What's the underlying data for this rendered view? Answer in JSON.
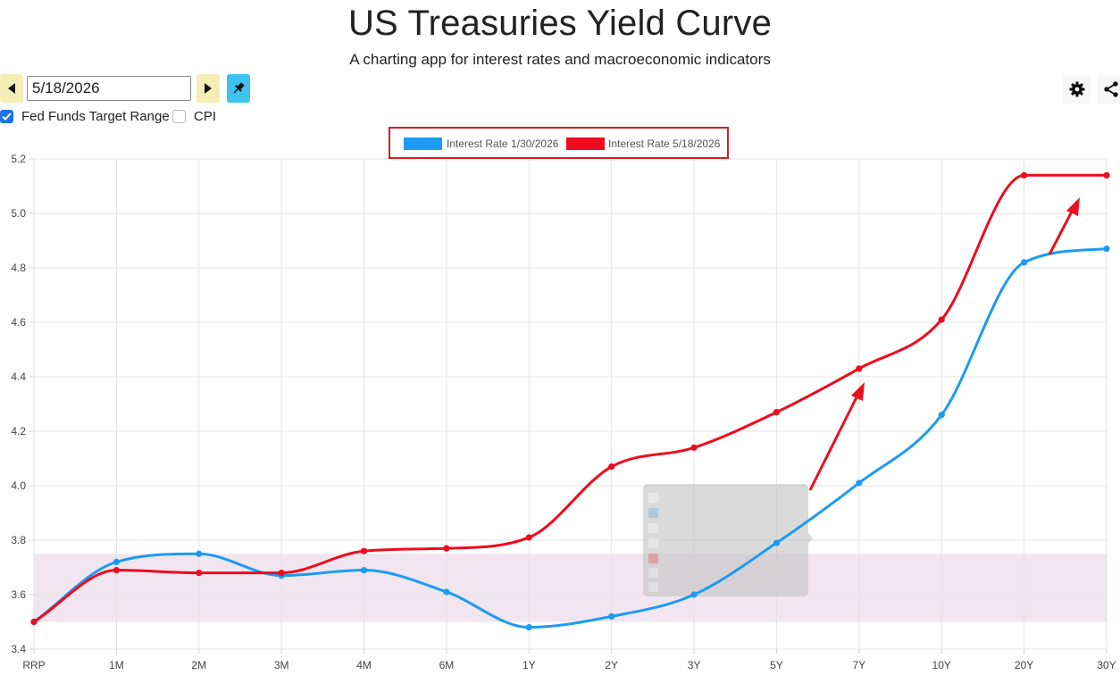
{
  "header": {
    "title": "US Treasuries Yield Curve",
    "subtitle": "A charting app for interest rates and macroeconomic indicators"
  },
  "controls": {
    "date_value": "5/18/2026",
    "prev_icon": "triangle-left-icon",
    "next_icon": "triangle-right-icon",
    "pin_icon": "pushpin-icon",
    "settings_icon": "gear-icon",
    "share_icon": "share-icon",
    "checkboxes": [
      {
        "label": "Fed Funds Target Range",
        "checked": true
      },
      {
        "label": "CPI",
        "checked": false
      }
    ]
  },
  "colors": {
    "series_blue": "#1e9af3",
    "series_red": "#ee0b1e",
    "band_fill": "#f1e6f0",
    "legend_border": "#d42020",
    "accent_yellow": "#f4eeb6",
    "accent_cyan": "#3fc3ee",
    "annotation_arrow": "#e8111e"
  },
  "chart_data": {
    "type": "line",
    "categories": [
      "RRP",
      "1M",
      "2M",
      "3M",
      "4M",
      "6M",
      "1Y",
      "2Y",
      "3Y",
      "5Y",
      "7Y",
      "10Y",
      "20Y",
      "30Y"
    ],
    "ylim": [
      3.4,
      5.2
    ],
    "yticks": [
      "3.4",
      "3.6",
      "3.8",
      "4.0",
      "4.2",
      "4.4",
      "4.6",
      "4.8",
      "5.0",
      "5.2"
    ],
    "grid": true,
    "legend_position": "top-center",
    "band": {
      "low": 3.5,
      "high": 3.75
    },
    "series": [
      {
        "name": "Interest Rate 1/30/2026",
        "color": "#1e9af3",
        "values": [
          3.5,
          3.72,
          3.75,
          3.67,
          3.69,
          3.61,
          3.48,
          3.52,
          3.6,
          3.79,
          4.01,
          4.26,
          4.82,
          4.87
        ]
      },
      {
        "name": "Interest Rate 5/18/2026",
        "color": "#ee0b1e",
        "values": [
          3.5,
          3.69,
          3.68,
          3.68,
          3.76,
          3.77,
          3.81,
          4.07,
          4.14,
          4.27,
          4.43,
          4.61,
          5.14,
          5.14
        ]
      }
    ]
  }
}
